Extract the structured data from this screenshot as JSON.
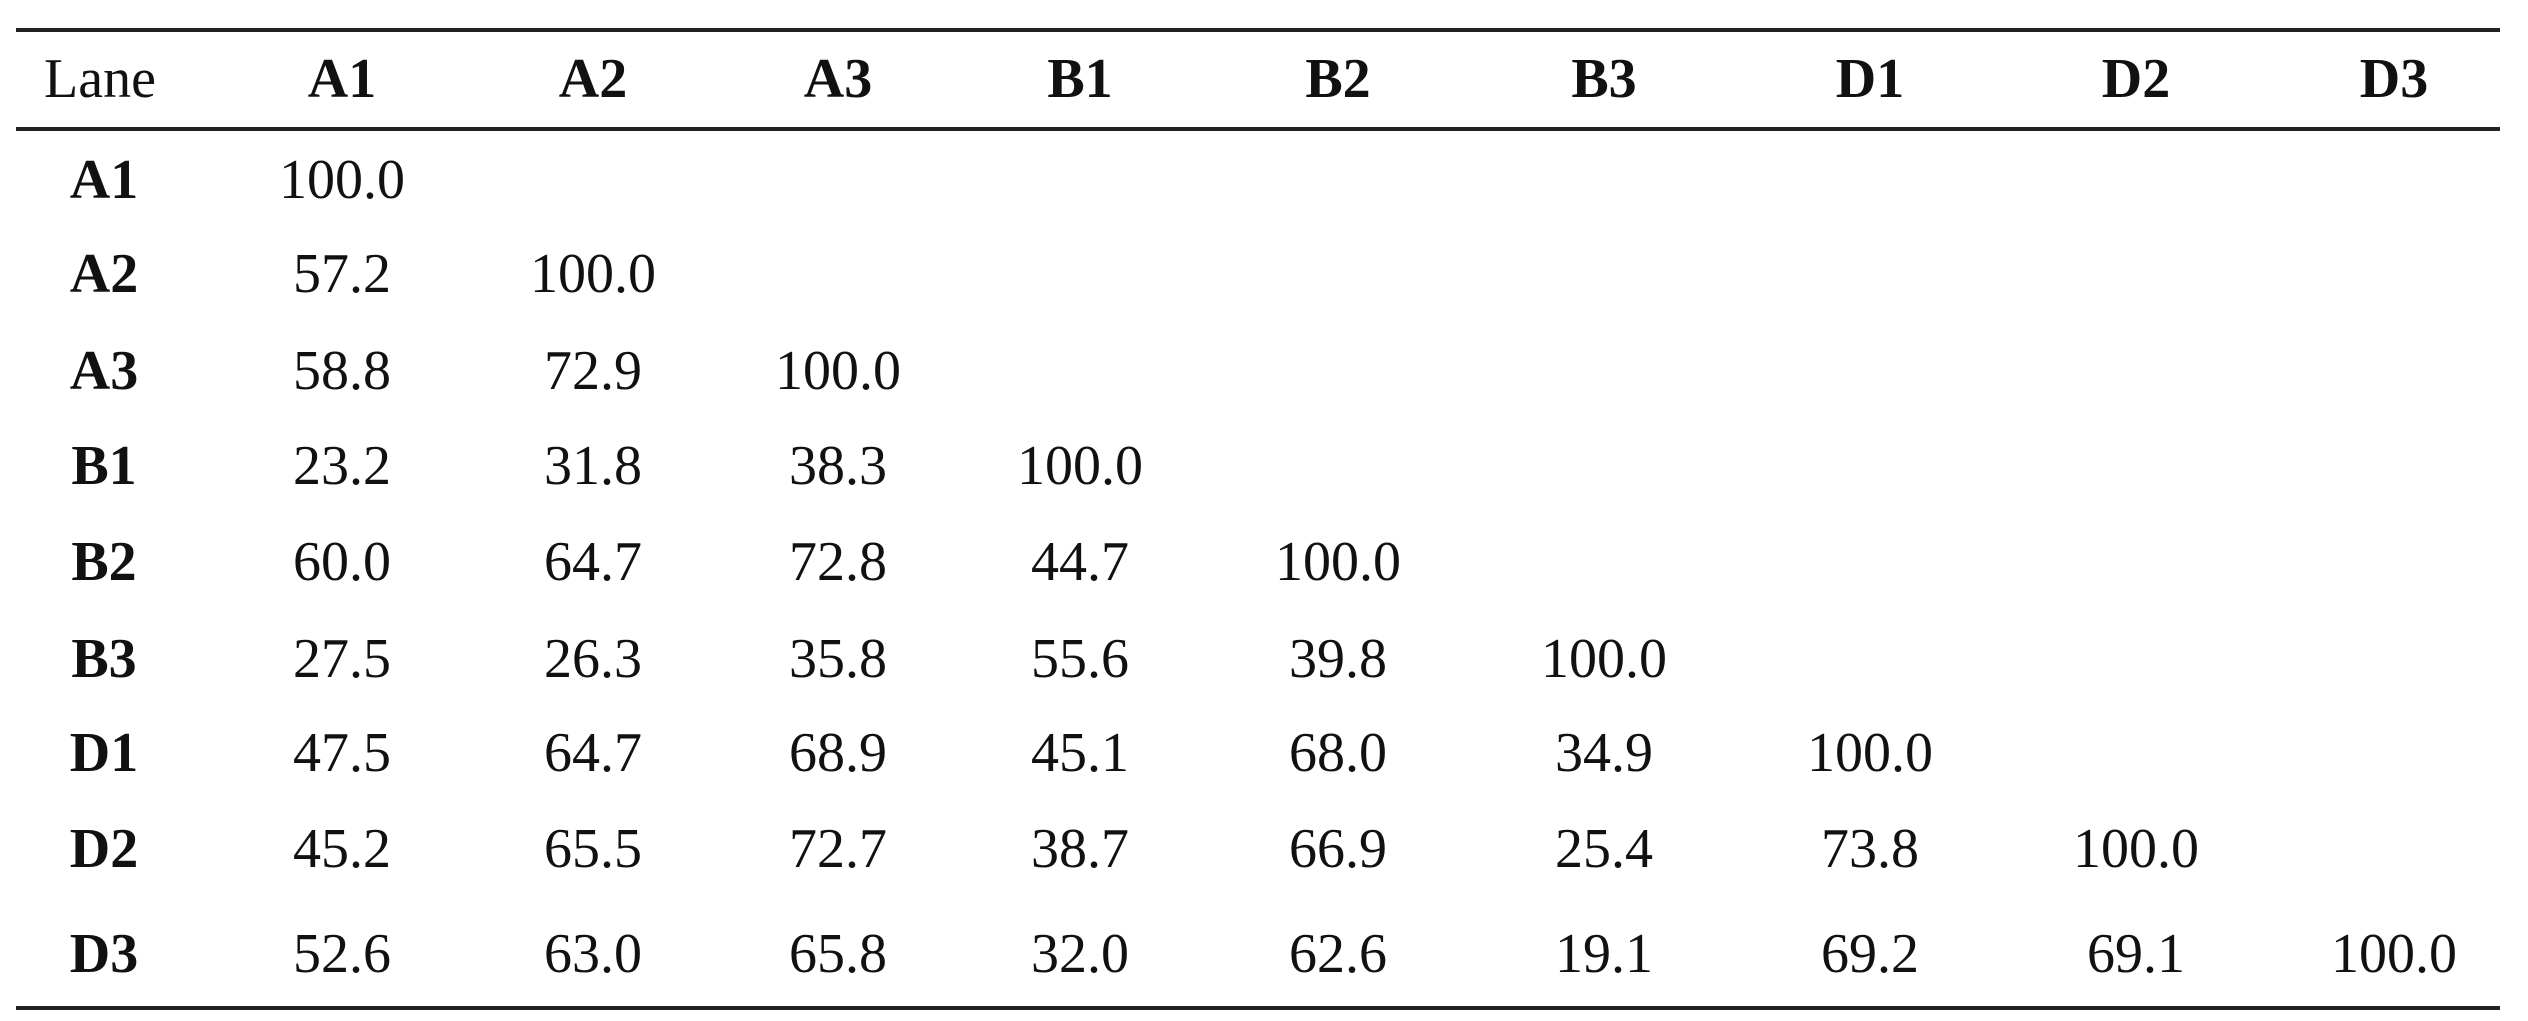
{
  "table": {
    "header": [
      "Lane",
      "A1",
      "A2",
      "A3",
      "B1",
      "B2",
      "B3",
      "D1",
      "D2",
      "D3"
    ],
    "rows": [
      {
        "label": "A1",
        "values": [
          "100.0"
        ]
      },
      {
        "label": "A2",
        "values": [
          "57.2",
          "100.0"
        ]
      },
      {
        "label": "A3",
        "values": [
          "58.8",
          "72.9",
          "100.0"
        ]
      },
      {
        "label": "B1",
        "values": [
          "23.2",
          "31.8",
          "38.3",
          "100.0"
        ]
      },
      {
        "label": "B2",
        "values": [
          "60.0",
          "64.7",
          "72.8",
          "44.7",
          "100.0"
        ]
      },
      {
        "label": "B3",
        "values": [
          "27.5",
          "26.3",
          "35.8",
          "55.6",
          "39.8",
          "100.0"
        ]
      },
      {
        "label": "D1",
        "values": [
          "47.5",
          "64.7",
          "68.9",
          "45.1",
          "68.0",
          "34.9",
          "100.0"
        ]
      },
      {
        "label": "D2",
        "values": [
          "45.2",
          "65.5",
          "72.7",
          "38.7",
          "66.9",
          "25.4",
          "73.8",
          "100.0"
        ]
      },
      {
        "label": "D3",
        "values": [
          "52.6",
          "63.0",
          "65.8",
          "32.0",
          "62.6",
          "19.1",
          "69.2",
          "69.1",
          "100.0"
        ]
      }
    ]
  }
}
